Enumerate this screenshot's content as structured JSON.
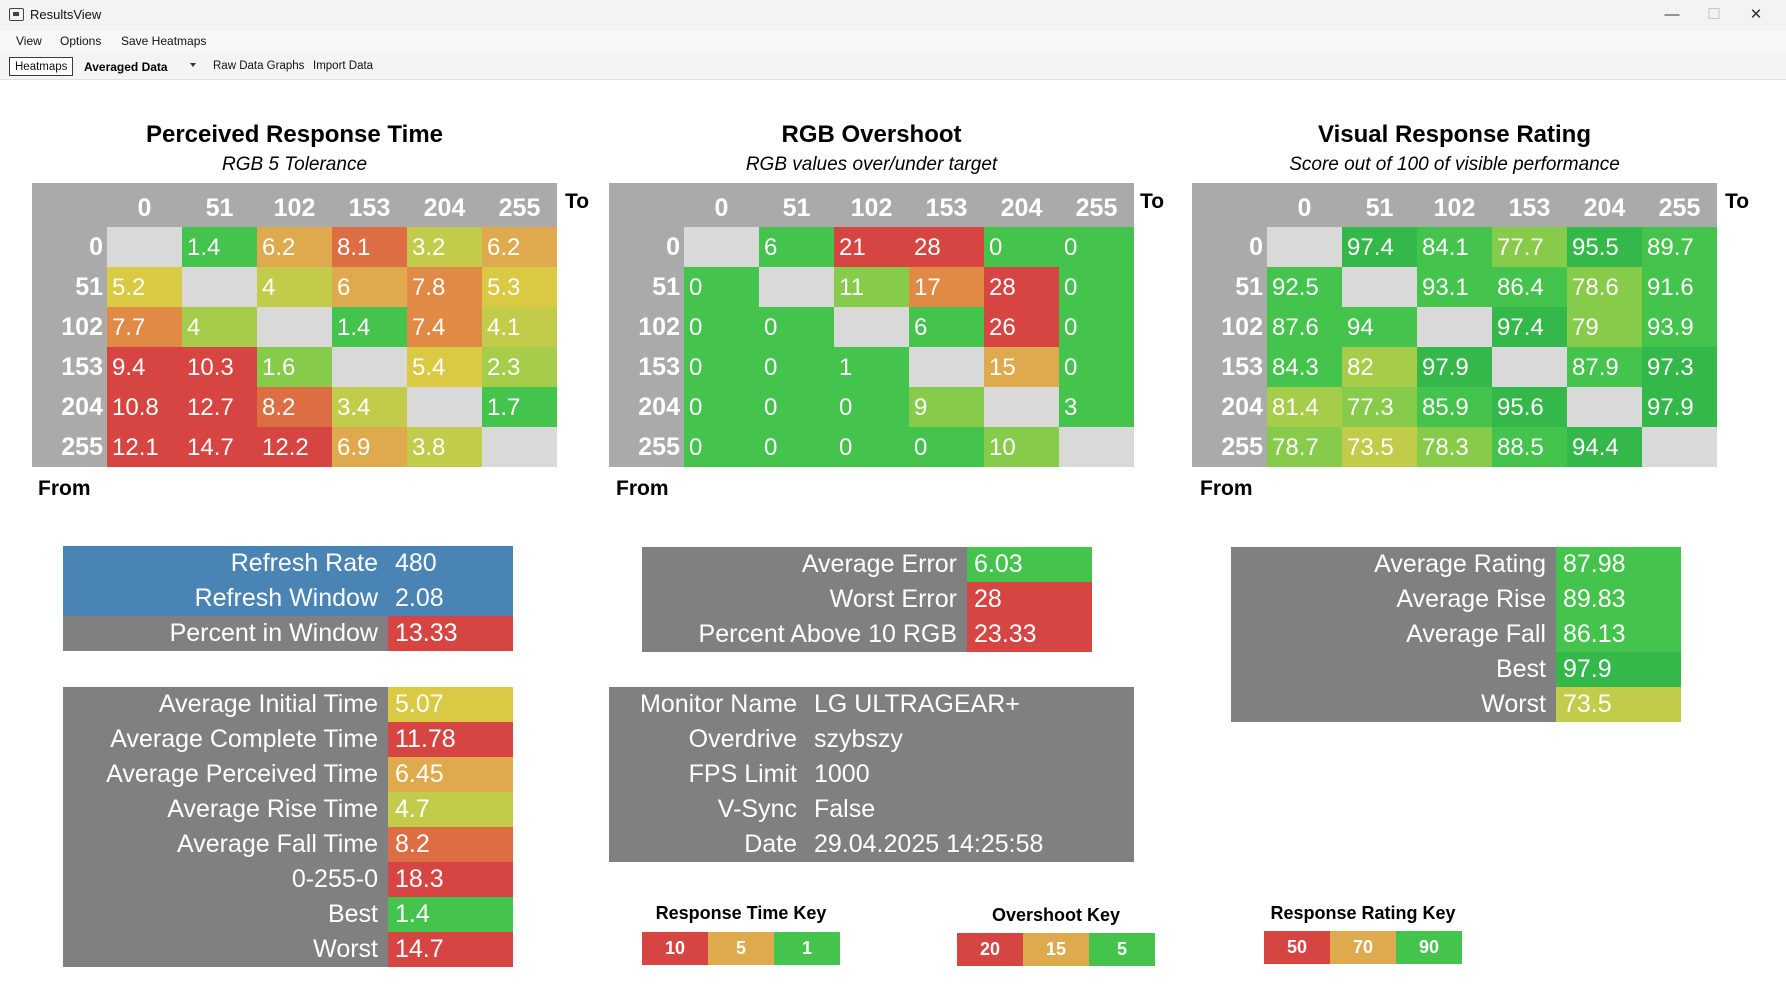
{
  "window": {
    "title": "ResultsView",
    "minimize": "—",
    "maximize": "☐",
    "close": "✕"
  },
  "menu": [
    "View",
    "Options",
    "Save Heatmaps"
  ],
  "tabs": {
    "heatmaps": "Heatmaps",
    "averaged": "Averaged Data",
    "raw": "Raw Data Graphs",
    "import": "Import Data"
  },
  "colors": {
    "red": "#d64541",
    "orange_red": "#dd6e44",
    "orange": "#e08a46",
    "amber": "#dfaa4e",
    "yellow": "#d9c943",
    "yellow_green": "#c2cc4a",
    "lime": "#a6cd4a",
    "light_green": "#86cb49",
    "green": "#45c44d",
    "green2": "#35b84a",
    "gray_cell": "#d9d9d9",
    "blue": "#4a84b5",
    "gray": "#808080"
  },
  "heatmaps": [
    {
      "id": "prt",
      "title": "Perceived Response Time",
      "subtitle": "RGB 5 Tolerance",
      "to": "To",
      "from": "From",
      "cols": [
        "0",
        "51",
        "102",
        "153",
        "204",
        "255"
      ],
      "rows": [
        "0",
        "51",
        "102",
        "153",
        "204",
        "255"
      ],
      "cells": [
        [
          "",
          "1.4",
          "6.2",
          "8.1",
          "3.2",
          "6.2"
        ],
        [
          "5.2",
          "",
          "4",
          "6",
          "7.8",
          "5.3"
        ],
        [
          "7.7",
          "4",
          "",
          "1.4",
          "7.4",
          "4.1"
        ],
        [
          "9.4",
          "10.3",
          "1.6",
          "",
          "5.4",
          "2.3"
        ],
        [
          "10.8",
          "12.7",
          "8.2",
          "3.4",
          "",
          "1.7"
        ],
        [
          "12.1",
          "14.7",
          "12.2",
          "6.9",
          "3.8",
          ""
        ]
      ],
      "cell_colors": [
        [
          "gray_cell",
          "green",
          "amber",
          "orange_red",
          "yellow_green",
          "amber"
        ],
        [
          "yellow",
          "gray_cell",
          "yellow_green",
          "amber",
          "orange",
          "yellow"
        ],
        [
          "orange",
          "lime",
          "gray_cell",
          "green",
          "orange",
          "yellow_green"
        ],
        [
          "red",
          "red",
          "light_green",
          "gray_cell",
          "yellow",
          "lime"
        ],
        [
          "red",
          "red",
          "orange_red",
          "yellow_green",
          "gray_cell",
          "green"
        ],
        [
          "red",
          "red",
          "red",
          "amber",
          "yellow_green",
          "gray_cell"
        ]
      ]
    },
    {
      "id": "ovs",
      "title": "RGB Overshoot",
      "subtitle": "RGB values over/under target",
      "to": "To",
      "from": "From",
      "cols": [
        "0",
        "51",
        "102",
        "153",
        "204",
        "255"
      ],
      "rows": [
        "0",
        "51",
        "102",
        "153",
        "204",
        "255"
      ],
      "cells": [
        [
          "",
          "6",
          "21",
          "28",
          "0",
          "0"
        ],
        [
          "0",
          "",
          "11",
          "17",
          "28",
          "0"
        ],
        [
          "0",
          "0",
          "",
          "6",
          "26",
          "0"
        ],
        [
          "0",
          "0",
          "1",
          "",
          "15",
          "0"
        ],
        [
          "0",
          "0",
          "0",
          "9",
          "",
          "3"
        ],
        [
          "0",
          "0",
          "0",
          "0",
          "10",
          ""
        ]
      ],
      "cell_colors": [
        [
          "gray_cell",
          "green",
          "red",
          "red",
          "green",
          "green"
        ],
        [
          "green",
          "gray_cell",
          "light_green",
          "orange",
          "red",
          "green"
        ],
        [
          "green",
          "green",
          "gray_cell",
          "green",
          "red",
          "green"
        ],
        [
          "green",
          "green",
          "green",
          "gray_cell",
          "amber",
          "green"
        ],
        [
          "green",
          "green",
          "green",
          "light_green",
          "gray_cell",
          "green"
        ],
        [
          "green",
          "green",
          "green",
          "green",
          "light_green",
          "gray_cell"
        ]
      ]
    },
    {
      "id": "vrr",
      "title": "Visual Response Rating",
      "subtitle": "Score out of 100 of visible performance",
      "to": "To",
      "from": "From",
      "cols": [
        "0",
        "51",
        "102",
        "153",
        "204",
        "255"
      ],
      "rows": [
        "0",
        "51",
        "102",
        "153",
        "204",
        "255"
      ],
      "cells": [
        [
          "",
          "97.4",
          "84.1",
          "77.7",
          "95.5",
          "89.7"
        ],
        [
          "92.5",
          "",
          "93.1",
          "86.4",
          "78.6",
          "91.6"
        ],
        [
          "87.6",
          "94",
          "",
          "97.4",
          "79",
          "93.9"
        ],
        [
          "84.3",
          "82",
          "97.9",
          "",
          "87.9",
          "97.3"
        ],
        [
          "81.4",
          "77.3",
          "85.9",
          "95.6",
          "",
          "97.9"
        ],
        [
          "78.7",
          "73.5",
          "78.3",
          "88.5",
          "94.4",
          ""
        ]
      ],
      "cell_colors": [
        [
          "gray_cell",
          "green2",
          "green",
          "light_green",
          "green2",
          "green"
        ],
        [
          "green",
          "gray_cell",
          "green",
          "green",
          "light_green",
          "green"
        ],
        [
          "green",
          "green",
          "gray_cell",
          "green2",
          "light_green",
          "green"
        ],
        [
          "green",
          "lime",
          "green2",
          "gray_cell",
          "green",
          "green2"
        ],
        [
          "lime",
          "light_green",
          "green",
          "green2",
          "gray_cell",
          "green2"
        ],
        [
          "light_green",
          "yellow_green",
          "light_green",
          "green",
          "green2",
          "gray_cell"
        ]
      ]
    }
  ],
  "refresh": [
    {
      "label": "Refresh Rate",
      "value": "480",
      "bg": "blue",
      "vbg": "blue"
    },
    {
      "label": "Refresh Window",
      "value": "2.08",
      "bg": "blue",
      "vbg": "blue"
    },
    {
      "label": "Percent in Window",
      "value": "13.33",
      "bg": "gray",
      "vbg": "red"
    }
  ],
  "times": [
    {
      "label": "Average Initial Time",
      "value": "5.07",
      "vbg": "yellow"
    },
    {
      "label": "Average Complete Time",
      "value": "11.78",
      "vbg": "red"
    },
    {
      "label": "Average Perceived Time",
      "value": "6.45",
      "vbg": "amber"
    },
    {
      "label": "Average Rise Time",
      "value": "4.7",
      "vbg": "yellow_green"
    },
    {
      "label": "Average Fall Time",
      "value": "8.2",
      "vbg": "orange_red"
    },
    {
      "label": "0-255-0",
      "value": "18.3",
      "vbg": "red"
    },
    {
      "label": "Best",
      "value": "1.4",
      "vbg": "green"
    },
    {
      "label": "Worst",
      "value": "14.7",
      "vbg": "red"
    }
  ],
  "error": [
    {
      "label": "Average Error",
      "value": "6.03",
      "vbg": "green"
    },
    {
      "label": "Worst Error",
      "value": "28",
      "vbg": "red"
    },
    {
      "label": "Percent Above 10 RGB",
      "value": "23.33",
      "vbg": "red"
    }
  ],
  "monitor": [
    {
      "label": "Monitor Name",
      "value": "LG ULTRAGEAR+"
    },
    {
      "label": "Overdrive",
      "value": "szybszy"
    },
    {
      "label": "FPS Limit",
      "value": "1000"
    },
    {
      "label": "V-Sync",
      "value": "False"
    },
    {
      "label": "Date",
      "value": "29.04.2025 14:25:58"
    }
  ],
  "rating": [
    {
      "label": "Average Rating",
      "value": "87.98",
      "vbg": "green"
    },
    {
      "label": "Average Rise",
      "value": "89.83",
      "vbg": "green"
    },
    {
      "label": "Average Fall",
      "value": "86.13",
      "vbg": "green"
    },
    {
      "label": "Best",
      "value": "97.9",
      "vbg": "green2"
    },
    {
      "label": "Worst",
      "value": "73.5",
      "vbg": "yellow_green"
    }
  ],
  "keys": [
    {
      "id": "rt",
      "title": "Response Time Key",
      "values": [
        "10",
        "5",
        "1"
      ],
      "colors": [
        "red",
        "amber",
        "green"
      ]
    },
    {
      "id": "os",
      "title": "Overshoot Key",
      "values": [
        "20",
        "15",
        "5"
      ],
      "colors": [
        "red",
        "amber",
        "green"
      ]
    },
    {
      "id": "rr",
      "title": "Response Rating Key",
      "values": [
        "50",
        "70",
        "90"
      ],
      "colors": [
        "red",
        "amber",
        "green"
      ]
    }
  ]
}
